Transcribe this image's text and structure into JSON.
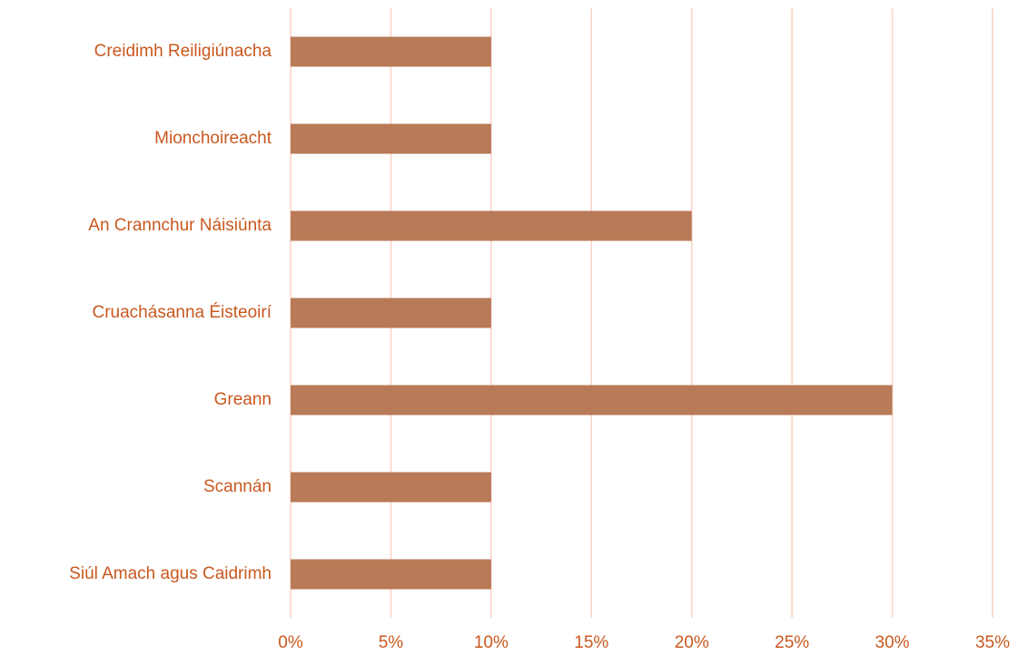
{
  "chart_data": {
    "type": "bar",
    "orientation": "horizontal",
    "categories": [
      "Creidimh Reiligiúnacha",
      "Mionchoireacht",
      "An Crannchur Náisiúnta",
      "Cruachásanna Éisteoirí",
      "Greann",
      "Scannán",
      "Siúl Amach agus Caidrimh"
    ],
    "values": [
      10,
      10,
      20,
      10,
      30,
      10,
      10
    ],
    "color": "#b97a57",
    "xlim": [
      0,
      35
    ],
    "xticks": [
      {
        "value": 0,
        "label": "0%"
      },
      {
        "value": 5,
        "label": "5%"
      },
      {
        "value": 10,
        "label": "10%"
      },
      {
        "value": 15,
        "label": "15%"
      },
      {
        "value": 20,
        "label": "20%"
      },
      {
        "value": 25,
        "label": "25%"
      },
      {
        "value": 30,
        "label": "30%"
      },
      {
        "value": 35,
        "label": "35%"
      }
    ],
    "grid": true
  }
}
